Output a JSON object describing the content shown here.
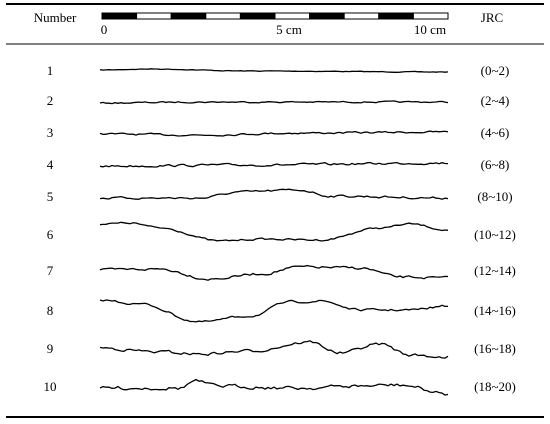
{
  "header": {
    "number": "Number",
    "scale_labels": [
      "0",
      "5 cm",
      "10 cm"
    ],
    "jrc": "JRC"
  },
  "rows": [
    {
      "number": "1",
      "jrc": "(0~2)"
    },
    {
      "number": "2",
      "jrc": "(2~4)"
    },
    {
      "number": "3",
      "jrc": "(4~6)"
    },
    {
      "number": "4",
      "jrc": "(6~8)"
    },
    {
      "number": "5",
      "jrc": "(8~10)"
    },
    {
      "number": "6",
      "jrc": "(10~12)"
    },
    {
      "number": "7",
      "jrc": "(12~14)"
    },
    {
      "number": "8",
      "jrc": "(14~16)"
    },
    {
      "number": "9",
      "jrc": "(16~18)"
    },
    {
      "number": "10",
      "jrc": "(18~20)"
    }
  ]
}
